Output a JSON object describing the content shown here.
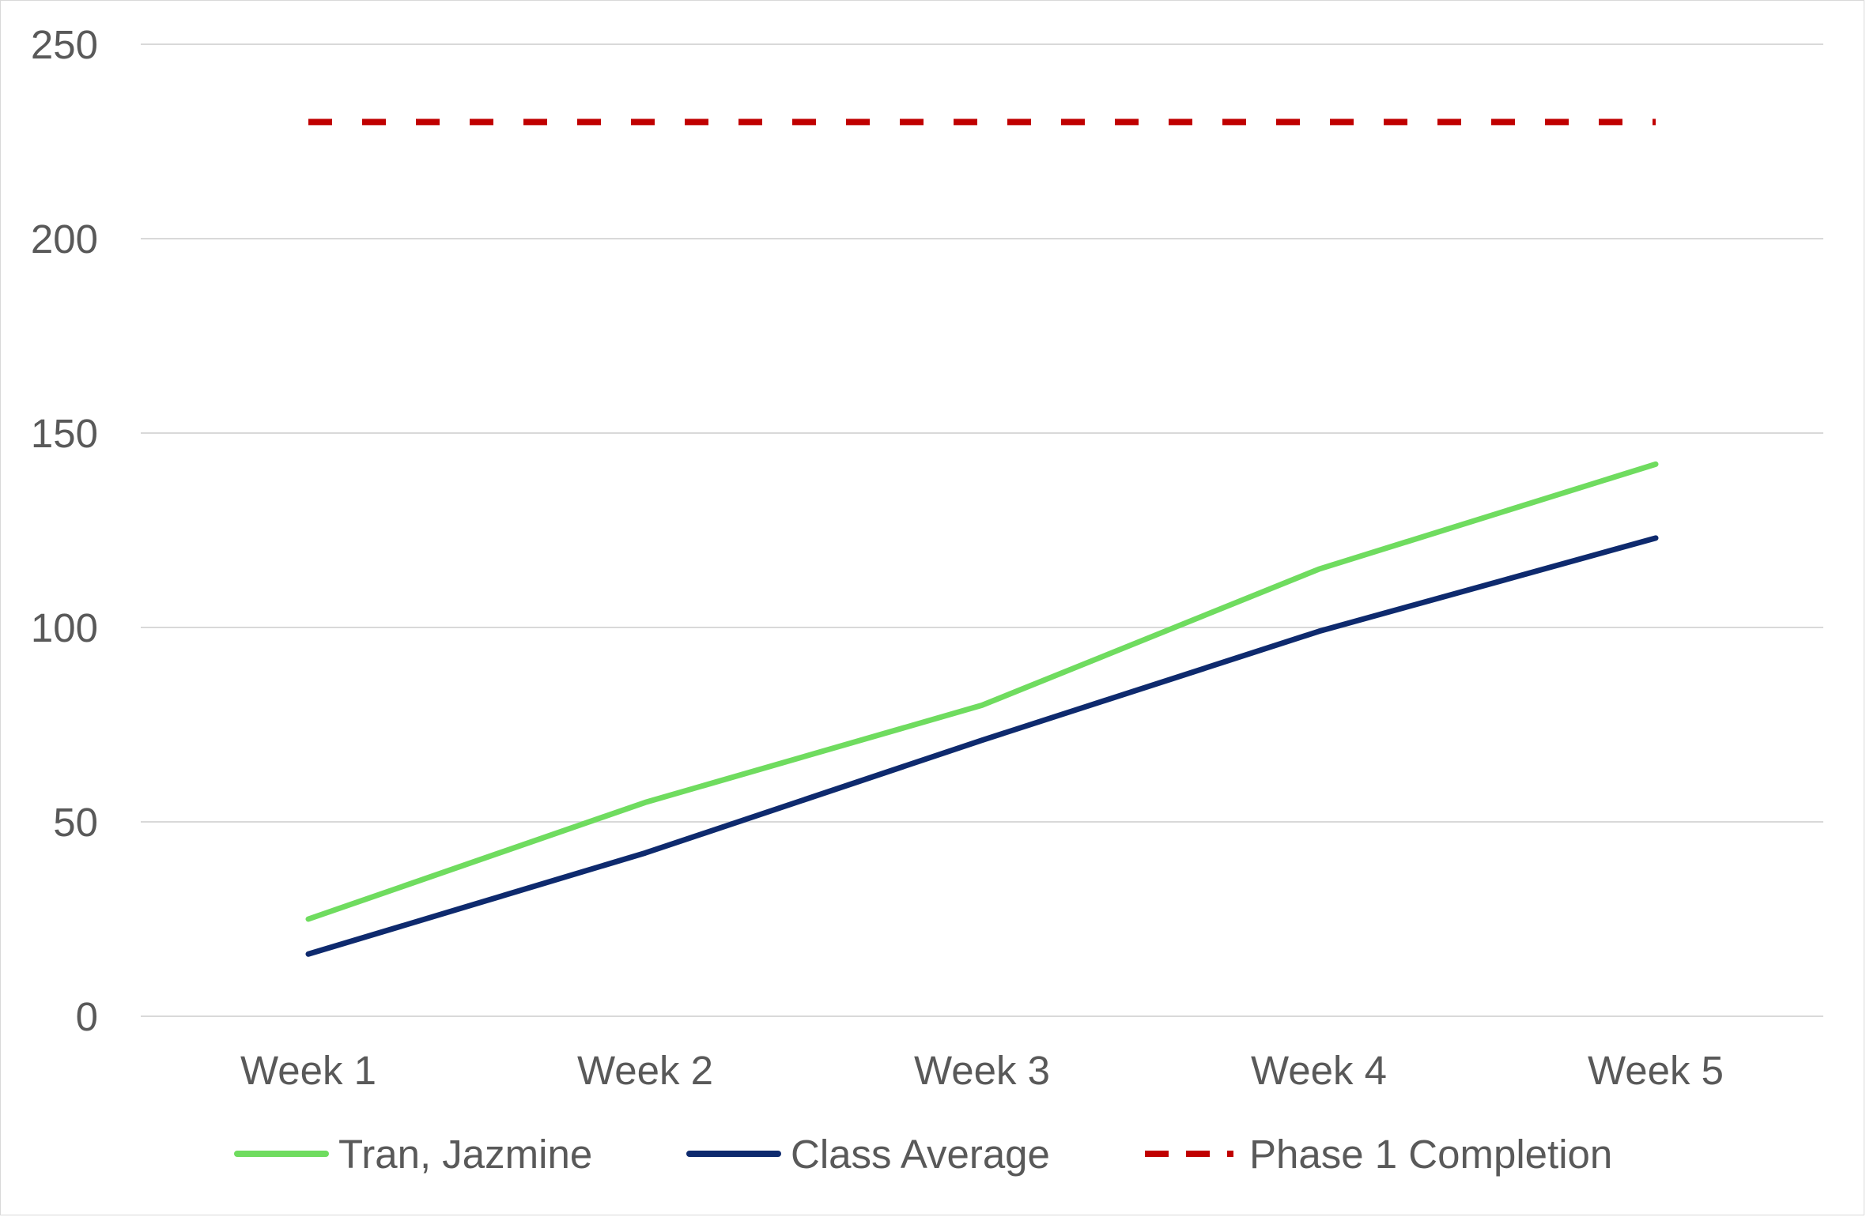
{
  "chart_data": {
    "type": "line",
    "title": "",
    "xlabel": "",
    "ylabel": "",
    "categories": [
      "Week 1",
      "Week 2",
      "Week 3",
      "Week 4",
      "Week 5"
    ],
    "ylim": [
      0,
      250
    ],
    "yticks": [
      0,
      50,
      100,
      150,
      200,
      250
    ],
    "grid": true,
    "legend_position": "bottom",
    "series": [
      {
        "name": "Tran, Jazmine",
        "values": [
          25,
          55,
          80,
          115,
          142
        ],
        "color": "#6fdc5f",
        "dash": "solid"
      },
      {
        "name": "Class Average",
        "values": [
          16,
          42,
          71,
          99,
          123
        ],
        "color": "#0e2a6e",
        "dash": "solid"
      },
      {
        "name": "Phase 1 Completion",
        "values": [
          230,
          230,
          230,
          230,
          230
        ],
        "color": "#c00000",
        "dash": "dashed"
      }
    ],
    "gridline_color": "#d9d9d9"
  }
}
